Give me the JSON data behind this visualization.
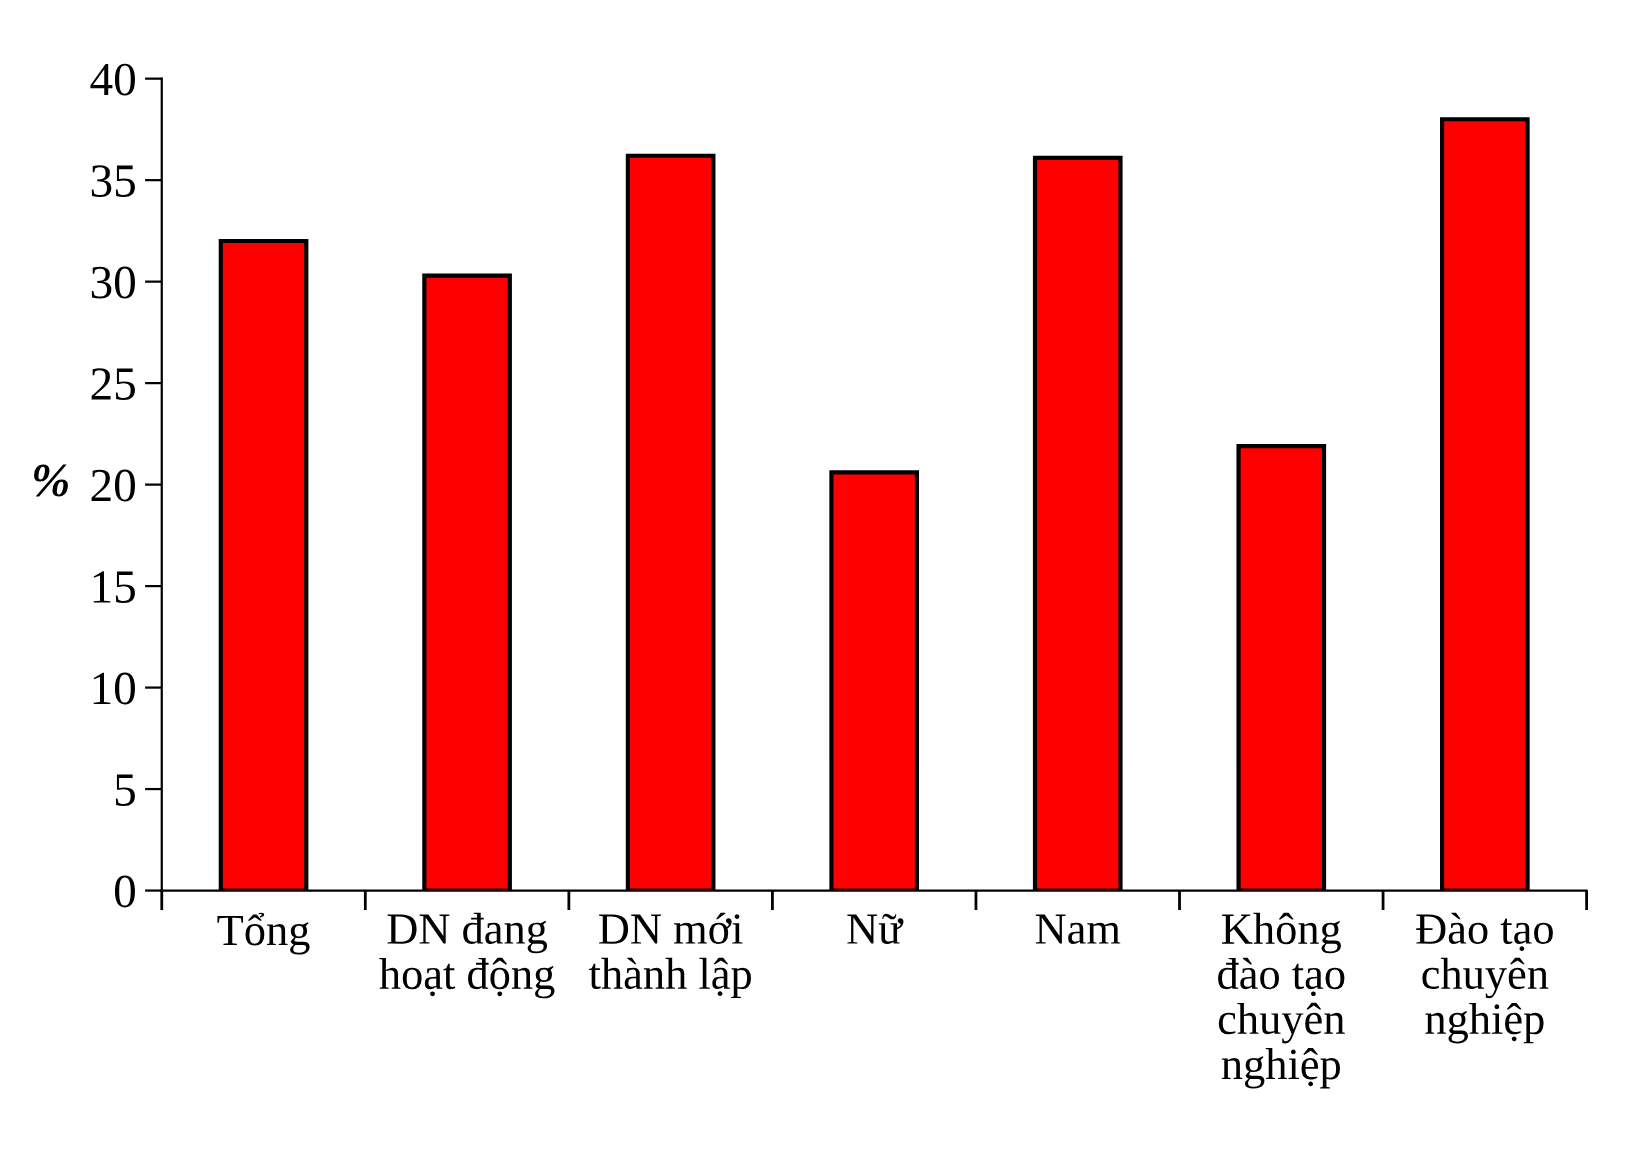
{
  "chart_data": {
    "type": "bar",
    "ylabel": "%",
    "categories": [
      "Tổng",
      "DN đang\nhoạt động",
      "DN mới\nthành lập",
      "Nữ",
      "Nam",
      "Không\nđào tạo\nchuyên\nnghiệp",
      "Đào tạo\nchuyên\nnghiệp"
    ],
    "values": [
      32.0,
      30.3,
      36.2,
      20.6,
      36.1,
      21.9,
      38.0
    ],
    "color": "#ff0000",
    "ylim": [
      0,
      40
    ],
    "yticks": [
      0,
      5,
      10,
      15,
      20,
      25,
      30,
      35,
      40
    ],
    "grid": false
  }
}
